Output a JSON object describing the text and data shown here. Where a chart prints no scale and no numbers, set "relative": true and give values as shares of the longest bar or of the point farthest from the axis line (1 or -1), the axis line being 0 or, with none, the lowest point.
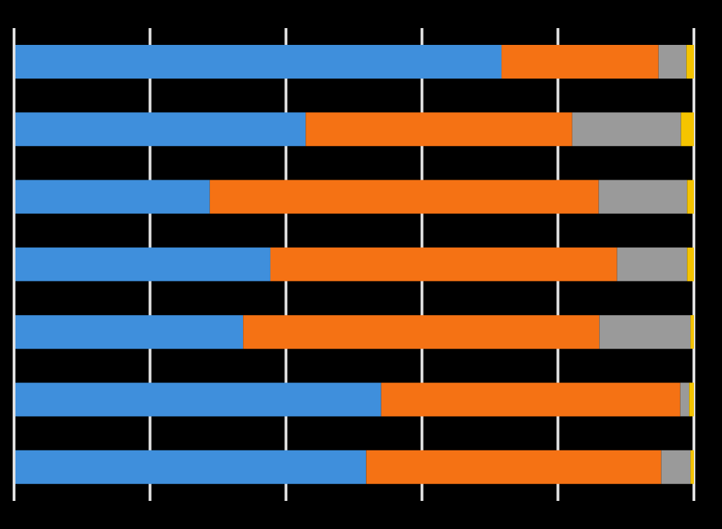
{
  "chart_data": {
    "type": "bar",
    "orientation": "horizontal",
    "stacked": true,
    "relative": true,
    "grid": "x",
    "legend": false,
    "categories": [
      null,
      null,
      null,
      null,
      null,
      null,
      null
    ],
    "series": [
      {
        "color": "#3f8fdc",
        "values": [
          0.717,
          0.429,
          0.288,
          0.377,
          0.337,
          0.54,
          0.518
        ]
      },
      {
        "color": "#f57214",
        "values": [
          0.231,
          0.392,
          0.572,
          0.51,
          0.524,
          0.44,
          0.434
        ]
      },
      {
        "color": "#9a9a9a",
        "values": [
          0.041,
          0.16,
          0.13,
          0.103,
          0.134,
          0.013,
          0.043
        ]
      },
      {
        "color": "#f5c400",
        "values": [
          0.011,
          0.019,
          0.01,
          0.01,
          0.005,
          0.007,
          0.005
        ]
      }
    ]
  }
}
